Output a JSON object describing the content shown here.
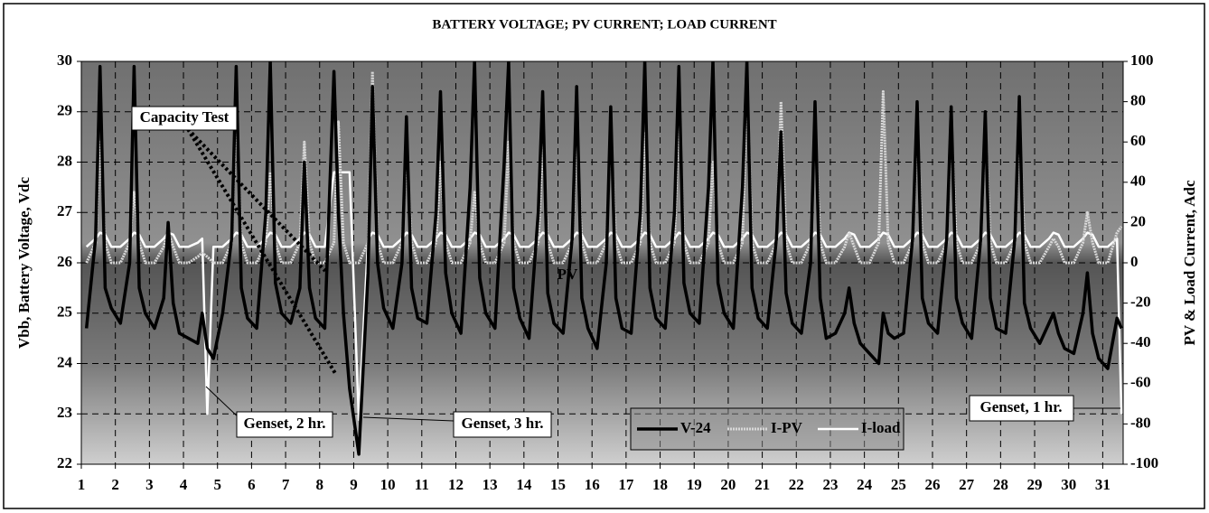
{
  "chart_data": {
    "type": "line",
    "title": "BATTERY VOLTAGE; PV CURRENT;  LOAD CURRENT",
    "y_label": "Vbb, Battery Voltage, Vdc",
    "y2_label": "PV & Load Current, Adc",
    "annotations": [
      "Capacity Test",
      "Genset, 2 hr.",
      "Genset, 3 hr.",
      "Genset, 1 hr.",
      "PV"
    ],
    "xlim": [
      1,
      31.6
    ],
    "xticks": [
      1,
      2,
      3,
      4,
      5,
      6,
      7,
      8,
      9,
      10,
      11,
      12,
      13,
      14,
      15,
      16,
      17,
      18,
      19,
      20,
      21,
      22,
      23,
      24,
      25,
      26,
      27,
      28,
      29,
      30,
      31
    ],
    "ylim": [
      22,
      30
    ],
    "yticks": [
      22,
      23,
      24,
      25,
      26,
      27,
      28,
      29,
      30
    ],
    "y2lim": [
      -100,
      100
    ],
    "y2ticks": [
      -100,
      -80,
      -60,
      -40,
      -20,
      0,
      20,
      40,
      60,
      80,
      100
    ],
    "grid": true,
    "x": [
      1.15,
      1.42,
      1.55,
      1.7,
      1.88,
      2.15,
      2.42,
      2.55,
      2.7,
      2.88,
      3.15,
      3.42,
      3.55,
      3.7,
      3.88,
      4.15,
      4.42,
      4.55,
      4.7,
      4.88,
      5.15,
      5.42,
      5.55,
      5.7,
      5.88,
      6.15,
      6.42,
      6.55,
      6.7,
      6.88,
      7.15,
      7.42,
      7.55,
      7.7,
      7.88,
      8.15,
      8.42,
      8.55,
      8.7,
      8.88,
      9.15,
      9.42,
      9.55,
      9.7,
      9.88,
      10.15,
      10.42,
      10.55,
      10.7,
      10.88,
      11.15,
      11.42,
      11.55,
      11.7,
      11.88,
      12.15,
      12.42,
      12.55,
      12.7,
      12.88,
      13.15,
      13.42,
      13.55,
      13.7,
      13.88,
      14.15,
      14.42,
      14.55,
      14.7,
      14.88,
      15.15,
      15.42,
      15.55,
      15.7,
      15.88,
      16.15,
      16.42,
      16.55,
      16.7,
      16.88,
      17.15,
      17.42,
      17.55,
      17.7,
      17.88,
      18.15,
      18.42,
      18.55,
      18.7,
      18.88,
      19.15,
      19.42,
      19.55,
      19.7,
      19.88,
      20.15,
      20.42,
      20.55,
      20.7,
      20.88,
      21.15,
      21.42,
      21.55,
      21.7,
      21.88,
      22.15,
      22.42,
      22.55,
      22.7,
      22.88,
      23.15,
      23.42,
      23.55,
      23.7,
      23.88,
      24.15,
      24.42,
      24.55,
      24.7,
      24.88,
      25.15,
      25.42,
      25.55,
      25.7,
      25.88,
      26.15,
      26.42,
      26.55,
      26.7,
      26.88,
      27.15,
      27.42,
      27.55,
      27.7,
      27.88,
      28.15,
      28.42,
      28.55,
      28.7,
      28.88,
      29.15,
      29.42,
      29.55,
      29.7,
      29.88,
      30.15,
      30.42,
      30.55,
      30.7,
      30.88,
      31.15,
      31.42,
      31.55
    ],
    "series": [
      {
        "name": "V-24",
        "color": "#000000",
        "axis": "y",
        "values": [
          24.7,
          26.5,
          29.9,
          25.5,
          25.1,
          24.8,
          26.0,
          29.9,
          25.5,
          25.0,
          24.7,
          25.3,
          26.8,
          25.2,
          24.6,
          24.5,
          24.4,
          25.0,
          24.3,
          24.1,
          25.0,
          26.5,
          29.9,
          25.5,
          24.9,
          24.7,
          27.0,
          30.0,
          25.6,
          25.0,
          24.8,
          25.5,
          28.0,
          25.5,
          24.9,
          24.7,
          29.8,
          27.0,
          25.0,
          23.5,
          22.2,
          25.8,
          29.5,
          26.0,
          25.1,
          24.7,
          26.0,
          28.9,
          25.5,
          24.9,
          24.8,
          27.0,
          29.4,
          25.8,
          25.0,
          24.6,
          27.5,
          30.0,
          25.7,
          25.0,
          24.7,
          28.0,
          30.0,
          25.5,
          24.9,
          24.5,
          27.0,
          29.4,
          25.4,
          24.8,
          24.6,
          26.5,
          29.5,
          25.3,
          24.7,
          24.3,
          26.0,
          29.1,
          25.3,
          24.7,
          24.6,
          27.0,
          30.0,
          25.5,
          24.9,
          24.7,
          27.0,
          29.9,
          25.6,
          25.0,
          24.8,
          27.5,
          30.0,
          25.6,
          25.0,
          24.7,
          27.5,
          30.0,
          25.5,
          24.9,
          24.7,
          26.5,
          28.6,
          25.4,
          24.8,
          24.6,
          26.0,
          29.2,
          25.3,
          24.5,
          24.6,
          25.0,
          25.5,
          24.8,
          24.4,
          24.2,
          24.0,
          25.0,
          24.6,
          24.5,
          24.6,
          26.5,
          29.2,
          25.3,
          24.8,
          24.6,
          26.5,
          29.1,
          25.3,
          24.8,
          24.5,
          26.5,
          29.0,
          25.3,
          24.7,
          24.6,
          26.5,
          29.3,
          25.2,
          24.7,
          24.4,
          24.8,
          25.0,
          24.6,
          24.3,
          24.2,
          25.0,
          25.8,
          24.6,
          24.1,
          23.9,
          24.9,
          24.7
        ]
      },
      {
        "name": "I-PV",
        "color": "#d8d8d8",
        "axis": "y2",
        "values": [
          0,
          10,
          60,
          10,
          0,
          0,
          10,
          35,
          10,
          0,
          0,
          8,
          15,
          8,
          0,
          0,
          3,
          5,
          3,
          0,
          0,
          10,
          80,
          10,
          0,
          0,
          10,
          45,
          10,
          0,
          0,
          10,
          60,
          10,
          0,
          0,
          10,
          70,
          10,
          0,
          0,
          10,
          95,
          10,
          0,
          0,
          10,
          55,
          10,
          0,
          0,
          10,
          50,
          10,
          0,
          0,
          10,
          35,
          10,
          0,
          0,
          10,
          60,
          10,
          0,
          0,
          10,
          60,
          10,
          0,
          0,
          10,
          65,
          10,
          0,
          0,
          10,
          65,
          10,
          0,
          0,
          10,
          65,
          10,
          0,
          0,
          10,
          80,
          10,
          0,
          0,
          10,
          50,
          10,
          0,
          0,
          10,
          90,
          10,
          0,
          0,
          10,
          80,
          10,
          0,
          0,
          10,
          70,
          10,
          0,
          0,
          8,
          15,
          8,
          0,
          0,
          10,
          85,
          10,
          0,
          0,
          10,
          70,
          10,
          0,
          0,
          10,
          70,
          10,
          0,
          0,
          10,
          70,
          10,
          0,
          0,
          10,
          70,
          10,
          0,
          0,
          8,
          12,
          8,
          0,
          0,
          10,
          25,
          10,
          0,
          0,
          15,
          18
        ]
      },
      {
        "name": "I-load",
        "color": "#ffffff",
        "axis": "y2",
        "values": [
          8,
          12,
          15,
          14,
          8,
          8,
          12,
          15,
          14,
          8,
          8,
          12,
          15,
          14,
          8,
          8,
          10,
          12,
          -75,
          8,
          8,
          12,
          15,
          14,
          8,
          8,
          12,
          15,
          14,
          8,
          8,
          12,
          15,
          14,
          8,
          8,
          45,
          45,
          45,
          45,
          -78,
          12,
          15,
          14,
          8,
          8,
          12,
          15,
          14,
          8,
          8,
          12,
          15,
          14,
          8,
          8,
          12,
          15,
          14,
          8,
          8,
          12,
          15,
          14,
          8,
          8,
          12,
          15,
          14,
          8,
          8,
          12,
          15,
          14,
          8,
          8,
          12,
          15,
          14,
          8,
          8,
          12,
          15,
          14,
          8,
          8,
          12,
          15,
          14,
          8,
          8,
          12,
          15,
          14,
          8,
          8,
          12,
          15,
          14,
          8,
          8,
          12,
          15,
          14,
          8,
          8,
          12,
          15,
          14,
          8,
          8,
          12,
          15,
          14,
          8,
          8,
          12,
          15,
          14,
          8,
          8,
          12,
          15,
          14,
          8,
          8,
          12,
          15,
          14,
          8,
          8,
          12,
          15,
          14,
          8,
          8,
          12,
          15,
          14,
          8,
          8,
          12,
          15,
          14,
          8,
          8,
          12,
          15,
          14,
          8,
          8,
          12,
          -75
        ]
      }
    ]
  }
}
